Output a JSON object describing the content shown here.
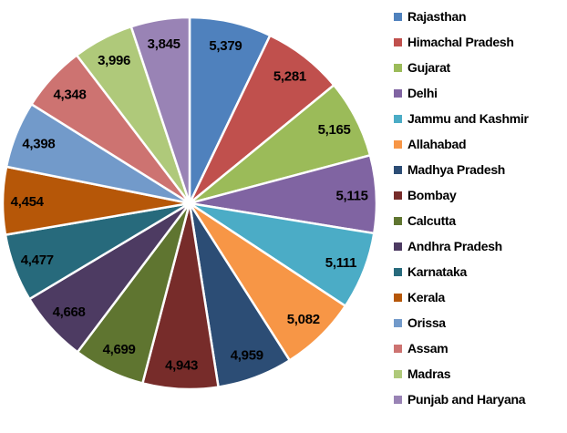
{
  "chart_data": {
    "type": "pie",
    "title": "",
    "legend_position": "right",
    "direction": "clockwise",
    "start_angle_deg": 0,
    "total": 75920,
    "background": "#FFFFFF",
    "slice_border_color": "#FFFFFF",
    "label_color": "#000000",
    "categories": [
      "Rajasthan",
      "Himachal Pradesh",
      "Gujarat",
      "Delhi",
      "Jammu and Kashmir",
      "Allahabad",
      "Madhya Pradesh",
      "Bombay",
      "Calcutta",
      "Andhra Pradesh",
      "Karnataka",
      "Kerala",
      "Orissa",
      "Assam",
      "Madras",
      "Punjab and Haryana"
    ],
    "values": [
      5379,
      5281,
      5165,
      5115,
      5111,
      5082,
      4959,
      4943,
      4699,
      4668,
      4477,
      4454,
      4398,
      4348,
      3996,
      3845
    ],
    "labels_formatted": [
      "5,379",
      "5,281",
      "5,165",
      "5,115",
      "5,111",
      "5,082",
      "4,959",
      "4,943",
      "4,699",
      "4,668",
      "4,477",
      "4,454",
      "4,398",
      "4,348",
      "3,996",
      "3,845"
    ],
    "colors": [
      "#4F81BD",
      "#C0504D",
      "#9BBB59",
      "#8064A2",
      "#4BACC6",
      "#F79646",
      "#2C4D75",
      "#772C2A",
      "#5F7530",
      "#4D3B62",
      "#276A7C",
      "#B65708",
      "#729ACA",
      "#CD7371",
      "#AFC97A",
      "#9983B5"
    ]
  }
}
